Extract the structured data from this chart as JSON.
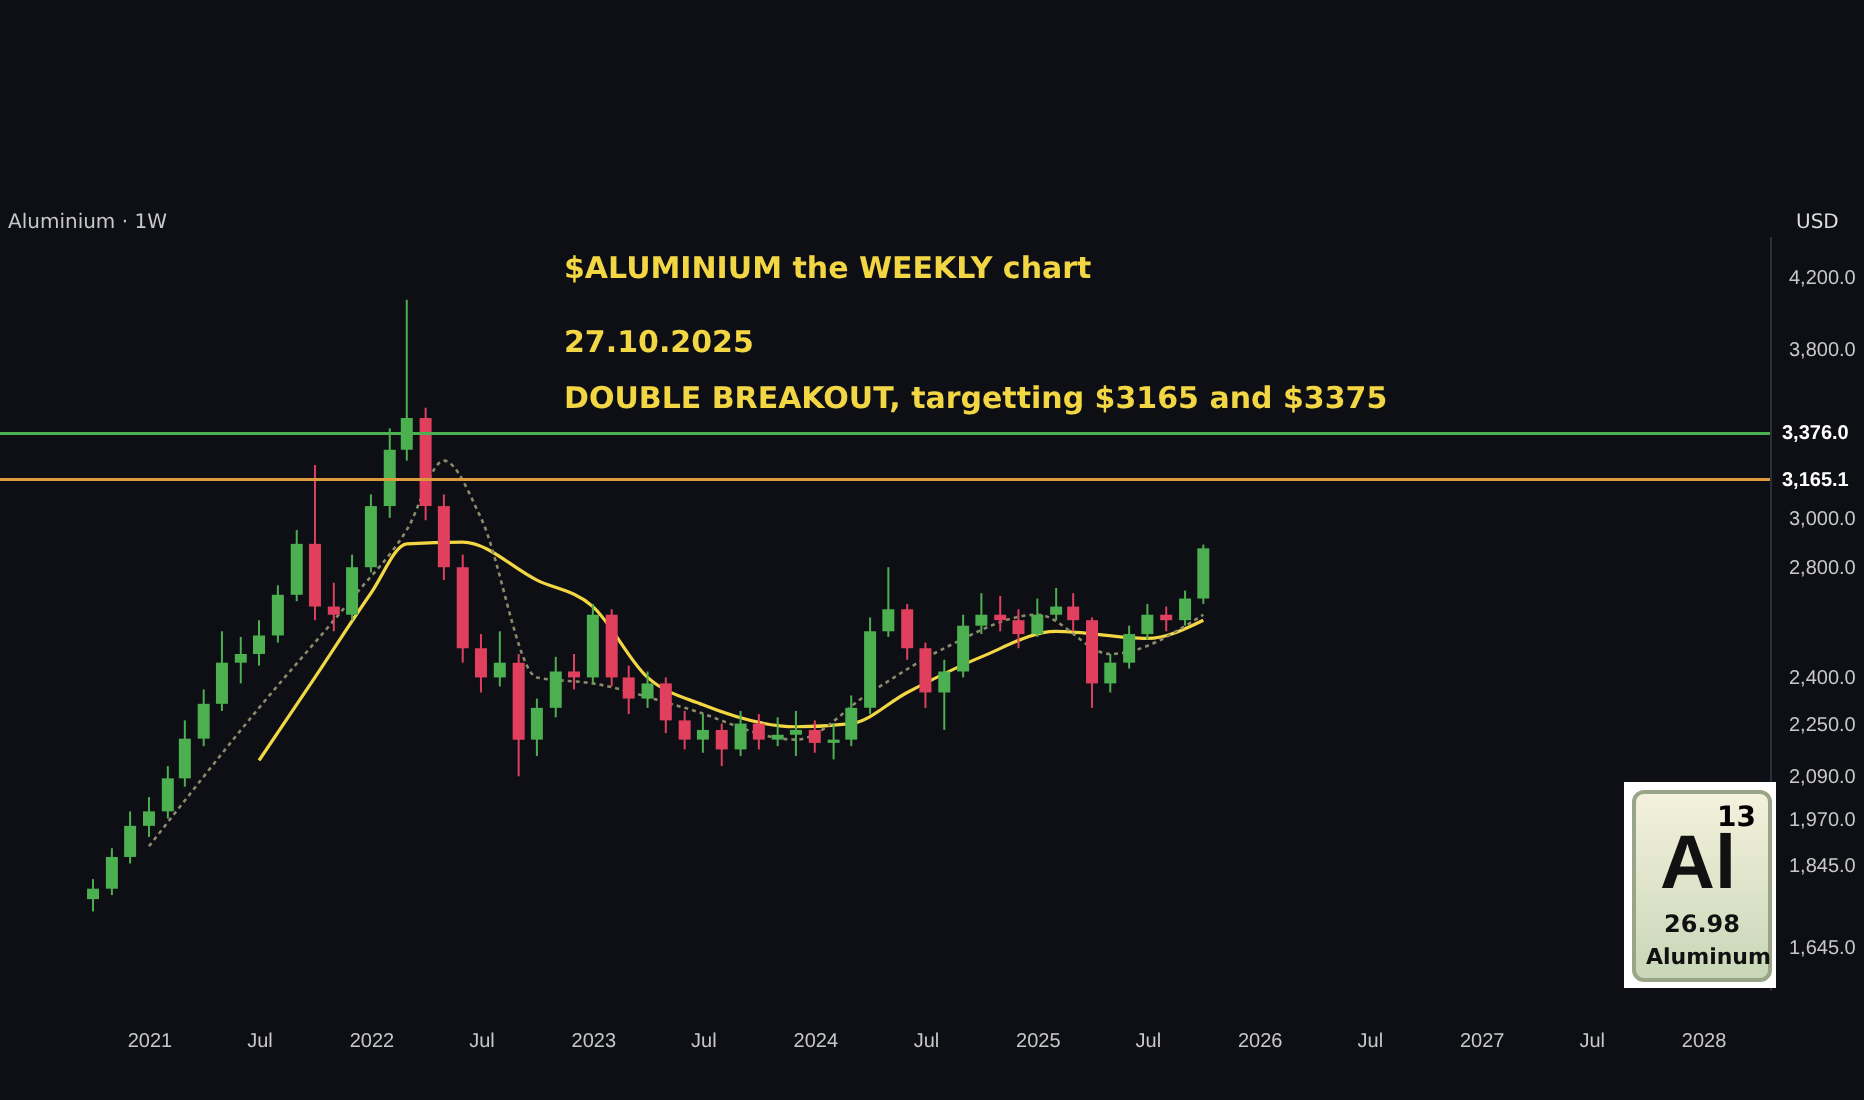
{
  "chart_data": {
    "type": "candlestick",
    "title": "$ALUMINIUM   the WEEKLY chart",
    "subtitle": "27.10.2025",
    "annotations": [
      "Aluminium · 1W",
      "DOUBLE BREAKOUT, targetting $3165 and $3375",
      "USD",
      "13",
      "Al",
      "26.98",
      "Aluminum"
    ],
    "x": [
      "2020-10-01",
      "2020-11-01",
      "2020-12-01",
      "2021-01-01",
      "2021-02-01",
      "2021-03-01",
      "2021-04-01",
      "2021-05-01",
      "2021-06-01",
      "2021-07-01",
      "2021-08-01",
      "2021-09-01",
      "2021-10-01",
      "2021-11-01",
      "2021-12-01",
      "2022-01-01",
      "2022-02-01",
      "2022-03-01",
      "2022-04-01",
      "2022-05-01",
      "2022-06-01",
      "2022-07-01",
      "2022-08-01",
      "2022-09-01",
      "2022-10-01",
      "2022-11-01",
      "2022-12-01",
      "2023-01-01",
      "2023-02-01",
      "2023-03-01",
      "2023-04-01",
      "2023-05-01",
      "2023-06-01",
      "2023-07-01",
      "2023-08-01",
      "2023-09-01",
      "2023-10-01",
      "2023-11-01",
      "2023-12-01",
      "2024-01-01",
      "2024-02-01",
      "2024-03-01",
      "2024-04-01",
      "2024-05-01",
      "2024-06-01",
      "2024-07-01",
      "2024-08-01",
      "2024-09-01",
      "2024-10-01",
      "2024-11-01",
      "2024-12-01",
      "2025-01-01",
      "2025-02-01",
      "2025-03-01",
      "2025-04-01",
      "2025-05-01",
      "2025-06-01",
      "2025-07-01",
      "2025-08-01",
      "2025-09-01",
      "2025-10-01"
    ],
    "ohlc": [
      [
        1760,
        1810,
        1730,
        1786
      ],
      [
        1786,
        1890,
        1770,
        1867
      ],
      [
        1867,
        1990,
        1850,
        1950
      ],
      [
        1950,
        2030,
        1920,
        1990
      ],
      [
        1990,
        2120,
        1970,
        2084
      ],
      [
        2084,
        2260,
        2060,
        2203
      ],
      [
        2203,
        2360,
        2180,
        2313
      ],
      [
        2313,
        2560,
        2290,
        2450
      ],
      [
        2450,
        2540,
        2380,
        2480
      ],
      [
        2480,
        2600,
        2440,
        2545
      ],
      [
        2545,
        2730,
        2520,
        2694
      ],
      [
        2694,
        2950,
        2670,
        2893
      ],
      [
        2893,
        3230,
        2600,
        2650
      ],
      [
        2650,
        2740,
        2560,
        2620
      ],
      [
        2620,
        2850,
        2600,
        2800
      ],
      [
        2800,
        3100,
        2780,
        3050
      ],
      [
        3050,
        3400,
        3000,
        3300
      ],
      [
        3300,
        4070,
        3250,
        3450
      ],
      [
        3450,
        3500,
        2990,
        3050
      ],
      [
        3050,
        3100,
        2750,
        2800
      ],
      [
        2800,
        2850,
        2450,
        2500
      ],
      [
        2500,
        2550,
        2350,
        2400
      ],
      [
        2400,
        2560,
        2370,
        2450
      ],
      [
        2450,
        2480,
        2090,
        2200
      ],
      [
        2200,
        2330,
        2150,
        2300
      ],
      [
        2300,
        2470,
        2270,
        2420
      ],
      [
        2420,
        2480,
        2360,
        2400
      ],
      [
        2400,
        2660,
        2380,
        2620
      ],
      [
        2620,
        2640,
        2370,
        2400
      ],
      [
        2400,
        2440,
        2280,
        2330
      ],
      [
        2330,
        2420,
        2300,
        2380
      ],
      [
        2380,
        2400,
        2220,
        2260
      ],
      [
        2260,
        2290,
        2170,
        2200
      ],
      [
        2200,
        2280,
        2160,
        2230
      ],
      [
        2230,
        2250,
        2120,
        2170
      ],
      [
        2170,
        2290,
        2150,
        2250
      ],
      [
        2250,
        2280,
        2170,
        2200
      ],
      [
        2200,
        2270,
        2180,
        2215
      ],
      [
        2215,
        2290,
        2150,
        2230
      ],
      [
        2230,
        2260,
        2160,
        2190
      ],
      [
        2190,
        2250,
        2140,
        2200
      ],
      [
        2200,
        2340,
        2180,
        2300
      ],
      [
        2300,
        2610,
        2280,
        2560
      ],
      [
        2560,
        2800,
        2540,
        2640
      ],
      [
        2640,
        2660,
        2460,
        2500
      ],
      [
        2500,
        2520,
        2300,
        2350
      ],
      [
        2350,
        2460,
        2230,
        2420
      ],
      [
        2420,
        2620,
        2400,
        2580
      ],
      [
        2580,
        2700,
        2550,
        2620
      ],
      [
        2620,
        2690,
        2560,
        2600
      ],
      [
        2600,
        2640,
        2500,
        2550
      ],
      [
        2550,
        2680,
        2540,
        2620
      ],
      [
        2620,
        2720,
        2600,
        2650
      ],
      [
        2650,
        2700,
        2560,
        2600
      ],
      [
        2600,
        2610,
        2300,
        2380
      ],
      [
        2380,
        2480,
        2350,
        2450
      ],
      [
        2450,
        2580,
        2430,
        2550
      ],
      [
        2550,
        2660,
        2530,
        2620
      ],
      [
        2620,
        2650,
        2560,
        2600
      ],
      [
        2600,
        2710,
        2580,
        2680
      ],
      [
        2680,
        2890,
        2660,
        2875
      ]
    ],
    "series": [
      {
        "type": "line",
        "color": "#f2d643",
        "line_style": "solid",
        "x": [
          "2021-07-01",
          "2021-10-01",
          "2022-01-01",
          "2022-03-01",
          "2022-06-01",
          "2022-10-01",
          "2023-01-01",
          "2023-04-01",
          "2023-07-01",
          "2023-12-01",
          "2024-03-01",
          "2024-06-01",
          "2024-10-01",
          "2025-02-01",
          "2025-07-01",
          "2025-10-01"
        ],
        "values": [
          2137,
          2400,
          2700,
          2893,
          2900,
          2750,
          2650,
          2400,
          2310,
          2240,
          2250,
          2350,
          2470,
          2560,
          2535,
          2600
        ]
      },
      {
        "type": "line",
        "color": "#8c8a6a",
        "line_style": "dotted",
        "x": [
          "2021-01-01",
          "2021-07-01",
          "2021-12-01",
          "2022-03-01",
          "2022-05-01",
          "2022-07-01",
          "2022-10-01",
          "2023-01-01",
          "2023-06-01",
          "2023-12-01",
          "2024-04-01",
          "2024-08-01",
          "2025-01-01",
          "2025-05-01",
          "2025-10-01"
        ],
        "values": [
          1895,
          2300,
          2680,
          2950,
          3250,
          3000,
          2400,
          2380,
          2300,
          2200,
          2350,
          2500,
          2620,
          2480,
          2620
        ]
      }
    ],
    "ref_lines": [
      {
        "axis": "y",
        "value": 3376,
        "label": "3,376.0",
        "color": "#4caf50"
      },
      {
        "axis": "y",
        "value": 3165.1,
        "label": "3,165.1",
        "color": "#e09a3e"
      }
    ],
    "xlim": [
      "2020-05-01",
      "2028-04-20"
    ],
    "xticks": [
      {
        "value": "2021-01-01",
        "label": "2021"
      },
      {
        "value": "2021-07-01",
        "label": "Jul"
      },
      {
        "value": "2022-01-01",
        "label": "2022"
      },
      {
        "value": "2022-07-01",
        "label": "Jul"
      },
      {
        "value": "2023-01-01",
        "label": "2023"
      },
      {
        "value": "2023-07-01",
        "label": "Jul"
      },
      {
        "value": "2024-01-01",
        "label": "2024"
      },
      {
        "value": "2024-07-01",
        "label": "Jul"
      },
      {
        "value": "2025-01-01",
        "label": "2025"
      },
      {
        "value": "2025-07-01",
        "label": "Jul"
      },
      {
        "value": "2026-01-01",
        "label": "2026"
      },
      {
        "value": "2026-07-01",
        "label": "Jul"
      },
      {
        "value": "2027-01-01",
        "label": "2027"
      },
      {
        "value": "2027-07-01",
        "label": "Jul"
      },
      {
        "value": "2028-01-01",
        "label": "2028"
      }
    ],
    "ylim": [
      1550,
      4450
    ],
    "yticks": [
      {
        "value": 1645,
        "label": "1,645.0"
      },
      {
        "value": 1845,
        "label": "1,845.0"
      },
      {
        "value": 1970,
        "label": "1,970.0"
      },
      {
        "value": 2090,
        "label": "2,090.0"
      },
      {
        "value": 2250,
        "label": "2,250.0"
      },
      {
        "value": 2400,
        "label": "2,400.0"
      },
      {
        "value": 2800,
        "label": "2,800.0"
      },
      {
        "value": 3000,
        "label": "3,000.0"
      },
      {
        "value": 3800,
        "label": "3,800.0"
      },
      {
        "value": 4200,
        "label": "4,200.0"
      }
    ],
    "log": true,
    "grid": false
  }
}
